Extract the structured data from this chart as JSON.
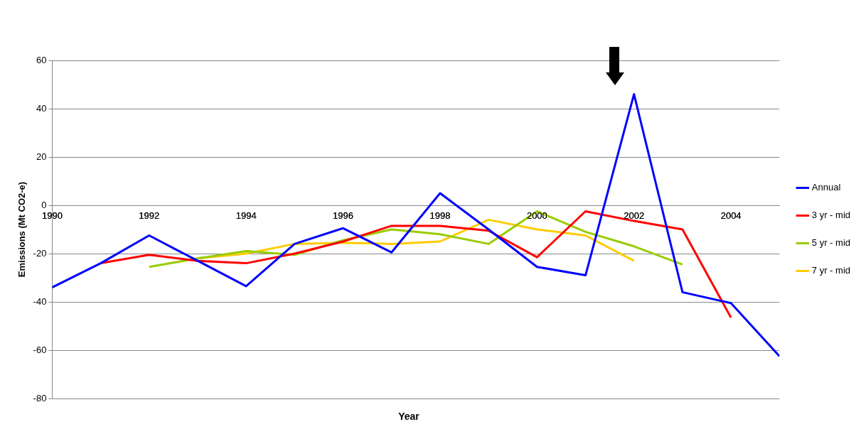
{
  "chart_data": {
    "type": "line",
    "xlabel": "Year",
    "ylabel": "Emissions (Mt CO2-e)",
    "xlim": [
      1990,
      2005
    ],
    "xticks": [
      1990,
      1992,
      1994,
      1996,
      1998,
      2000,
      2002,
      2004
    ],
    "ylim": [
      -80,
      60
    ],
    "yticks": [
      -80,
      -60,
      -40,
      -20,
      0,
      20,
      40,
      60
    ],
    "grid": "y",
    "legend": "right",
    "marker": "none",
    "line_style": "solid",
    "series": [
      {
        "name": "Annual",
        "color": "#0000ff",
        "x": [
          1990,
          1991,
          1992,
          1993,
          1994,
          1995,
          1996,
          1997,
          1998,
          1999,
          2000,
          2001,
          2002,
          2003,
          2004,
          2005
        ],
        "values": [
          -34,
          -24,
          -12.5,
          -23,
          -33.5,
          -16,
          -9.5,
          -19.5,
          5,
          -10,
          -25.5,
          -29,
          46,
          -36,
          -40.5,
          -62.5
        ]
      },
      {
        "name": "3 yr - mid",
        "color": "#ff0000",
        "x": [
          1991,
          1992,
          1993,
          1994,
          1995,
          1996,
          1997,
          1998,
          1999,
          2000,
          2001,
          2002,
          2003,
          2004
        ],
        "values": [
          -24,
          -20.5,
          -23,
          -24,
          -20,
          -15,
          -8.5,
          -8.5,
          -10.5,
          -21.5,
          -2.5,
          -6.5,
          -10,
          -46.5
        ]
      },
      {
        "name": "5 yr - mid",
        "color": "#99cc00",
        "x": [
          1992,
          1993,
          1994,
          1995,
          1996,
          1997,
          1998,
          1999,
          2000,
          2001,
          2002,
          2003
        ],
        "values": [
          -25.5,
          -22,
          -19,
          -20.5,
          -14.5,
          -10,
          -12,
          -16,
          -2.5,
          -11,
          -17,
          -24.5
        ]
      },
      {
        "name": "7 yr - mid",
        "color": "#ffcc00",
        "x": [
          1993,
          1994,
          1995,
          1996,
          1997,
          1998,
          1999,
          2000,
          2001,
          2002
        ],
        "values": [
          -22,
          -20,
          -16,
          -15.5,
          -16,
          -15,
          -6,
          -10,
          -12.5,
          -23
        ]
      }
    ]
  }
}
